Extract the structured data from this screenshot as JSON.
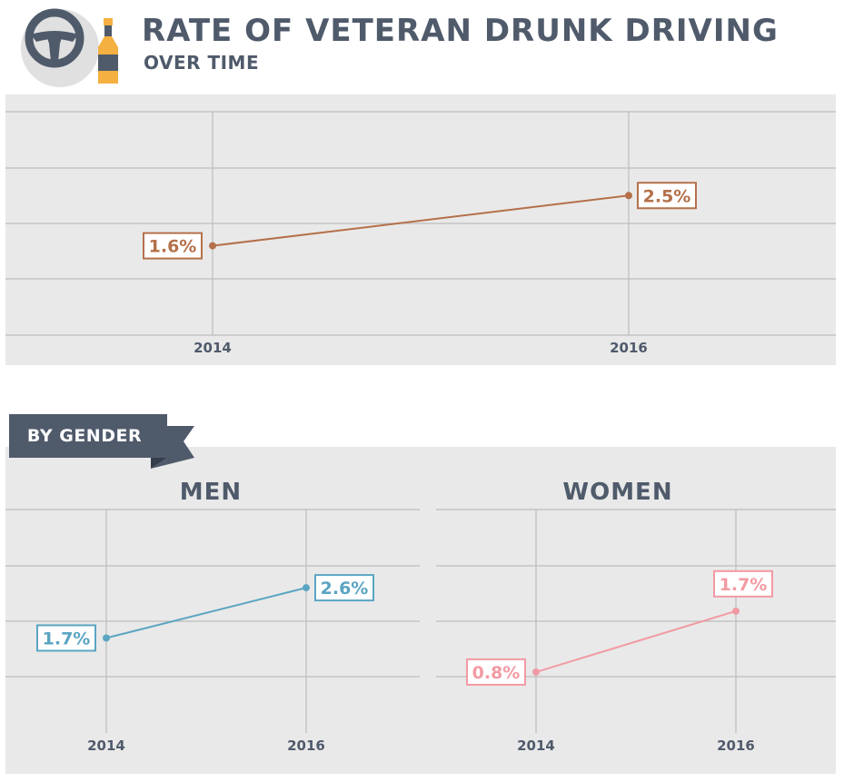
{
  "header": {
    "title": "RATE OF VETERAN DRUNK DRIVING",
    "subtitle": "OVER TIME"
  },
  "colors": {
    "heading": "#4f5a6b",
    "total": "#b4704a",
    "men": "#5aa5c2",
    "women": "#f29aa3",
    "grid": "#bdbdbd",
    "panel": "#e9e9e9"
  },
  "section_label": "BY GENDER",
  "chart_data": [
    {
      "type": "line",
      "title": "",
      "categories": [
        "2014",
        "2016"
      ],
      "series": [
        {
          "values": [
            1.6,
            2.5
          ],
          "labels": [
            "1.6%",
            "2.5%"
          ]
        }
      ],
      "xlabel": "",
      "ylabel": "",
      "grid": true,
      "color": "#b4704a"
    },
    {
      "type": "line",
      "title": "MEN",
      "categories": [
        "2014",
        "2016"
      ],
      "series": [
        {
          "values": [
            1.7,
            2.6
          ],
          "labels": [
            "1.7%",
            "2.6%"
          ]
        }
      ],
      "xlabel": "",
      "ylabel": "",
      "grid": true,
      "color": "#5aa5c2"
    },
    {
      "type": "line",
      "title": "WOMEN",
      "categories": [
        "2014",
        "2016"
      ],
      "series": [
        {
          "values": [
            0.8,
            1.7
          ],
          "labels": [
            "0.8%",
            "1.7%"
          ]
        }
      ],
      "xlabel": "",
      "ylabel": "",
      "grid": true,
      "color": "#f29aa3"
    }
  ]
}
